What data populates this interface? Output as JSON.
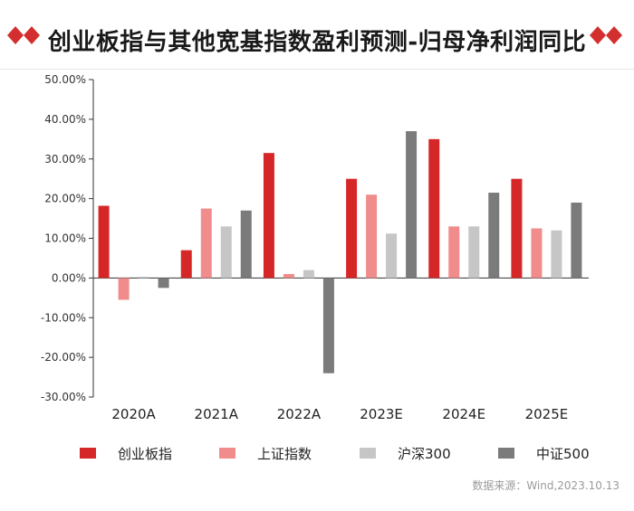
{
  "title": "创业板指与其他宽基指数盈利预测-归母净利润同比",
  "source": "数据来源：Wind,2023.10.13",
  "colors": {
    "accent": "#d32f2f",
    "axis": "#333333"
  },
  "chart_data": {
    "type": "bar",
    "title": "创业板指与其他宽基指数盈利预测-归母净利润同比",
    "categories": [
      "2020A",
      "2021A",
      "2022A",
      "2023E",
      "2024E",
      "2025E"
    ],
    "ylim": [
      -30,
      50
    ],
    "yticks": [
      50,
      40,
      30,
      20,
      10,
      0,
      -10,
      -20,
      -30
    ],
    "ytick_labels": [
      "50.00%",
      "40.00%",
      "30.00%",
      "20.00%",
      "10.00%",
      "0.00%",
      "-10.00%",
      "-20.00%",
      "-30.00%"
    ],
    "grid": false,
    "legend_position": "bottom",
    "series": [
      {
        "name": "创业板指",
        "color": "#d62728",
        "values": [
          18.2,
          7.0,
          31.5,
          25.0,
          35.0,
          25.0
        ]
      },
      {
        "name": "上证指数",
        "color": "#f08c8c",
        "values": [
          -5.5,
          17.5,
          1.0,
          21.0,
          13.0,
          12.5
        ]
      },
      {
        "name": "沪深300",
        "color": "#c6c6c6",
        "values": [
          0.3,
          13.0,
          2.0,
          11.2,
          13.0,
          12.0
        ]
      },
      {
        "name": "中证500",
        "color": "#7b7b7b",
        "values": [
          -2.5,
          17.0,
          -24.0,
          37.0,
          21.5,
          19.0
        ]
      }
    ]
  }
}
